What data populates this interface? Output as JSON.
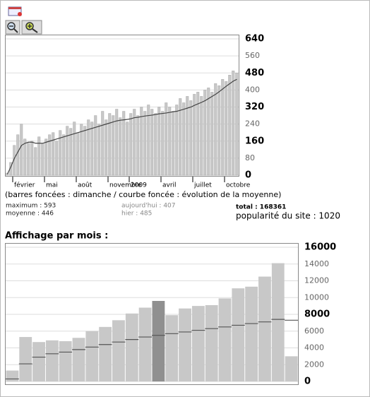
{
  "stats": {
    "legend_note": "(barres foncées : dimanche / courbe foncée : évolution de la moyenne)",
    "maximum": "maximum : 593",
    "moyenne": "moyenne : 446",
    "aujourdhui": "aujourd'hui : 407",
    "hier": "hier : 485",
    "total": "total : 168361",
    "popularite": "popularité du site : 1020",
    "monthly_title": "Affichage par mois :"
  },
  "chart_data": [
    {
      "type": "bar",
      "categories": [
        null,
        null,
        "février",
        null,
        null,
        null,
        null,
        null,
        null,
        null,
        null,
        "mai",
        null,
        null,
        null,
        null,
        null,
        null,
        null,
        null,
        "août",
        null,
        null,
        null,
        null,
        null,
        null,
        null,
        null,
        "novembre",
        null,
        null,
        null,
        null,
        null,
        "2009",
        null,
        null,
        null,
        null,
        null,
        null,
        null,
        null,
        "avril",
        null,
        null,
        null,
        null,
        null,
        null,
        null,
        null,
        "juillet",
        null,
        null,
        null,
        null,
        null,
        null,
        null,
        null,
        "octobre",
        null,
        null,
        null
      ],
      "series": [
        {
          "color": "#c8c8c8",
          "values": [
            10,
            60,
            140,
            190,
            240,
            170,
            150,
            160,
            130,
            180,
            150,
            170,
            190,
            200,
            160,
            210,
            190,
            230,
            220,
            250,
            200,
            240,
            230,
            260,
            250,
            280,
            240,
            300,
            260,
            290,
            280,
            310,
            270,
            300,
            250,
            290,
            310,
            280,
            320,
            300,
            330,
            310,
            290,
            320,
            300,
            340,
            320,
            300,
            330,
            360,
            340,
            370,
            350,
            380,
            390,
            370,
            400,
            410,
            390,
            430,
            420,
            450,
            440,
            470,
            490,
            480
          ]
        },
        {
          "type": "line",
          "color": "#444444",
          "values": [
            5,
            40,
            80,
            110,
            140,
            150,
            155,
            155,
            150,
            150,
            150,
            155,
            160,
            165,
            170,
            175,
            180,
            185,
            190,
            195,
            200,
            205,
            210,
            215,
            220,
            225,
            230,
            235,
            240,
            245,
            250,
            255,
            258,
            260,
            262,
            265,
            270,
            272,
            275,
            278,
            280,
            282,
            285,
            288,
            290,
            292,
            295,
            298,
            300,
            305,
            310,
            315,
            320,
            328,
            335,
            342,
            350,
            360,
            370,
            380,
            392,
            405,
            418,
            430,
            442,
            450
          ]
        }
      ],
      "ylim": [
        0,
        640
      ],
      "yticks": [
        0,
        80,
        160,
        240,
        320,
        400,
        480,
        560,
        640
      ],
      "grid": true
    },
    {
      "type": "bar",
      "series": [
        {
          "colors": [
            "#c8c8c8",
            "#c8c8c8",
            "#c8c8c8",
            "#c8c8c8",
            "#c8c8c8",
            "#c8c8c8",
            "#c8c8c8",
            "#c8c8c8",
            "#c8c8c8",
            "#c8c8c8",
            "#c8c8c8",
            "#909090",
            "#c8c8c8",
            "#c8c8c8",
            "#c8c8c8",
            "#c8c8c8",
            "#c8c8c8",
            "#c8c8c8",
            "#c8c8c8",
            "#c8c8c8",
            "#c8c8c8",
            "#c8c8c8"
          ],
          "values": [
            1300,
            5300,
            4700,
            4900,
            4800,
            5200,
            6000,
            6500,
            7300,
            8100,
            8800,
            9600,
            7900,
            8700,
            9000,
            9100,
            9900,
            11100,
            11300,
            12500,
            14100,
            3000
          ]
        },
        {
          "type": "step",
          "color": "#555555",
          "values": [
            300,
            2100,
            2900,
            3300,
            3500,
            3800,
            4100,
            4400,
            4700,
            5000,
            5300,
            5500,
            5700,
            5900,
            6100,
            6300,
            6500,
            6700,
            6900,
            7100,
            7400,
            7300
          ]
        }
      ],
      "ylim": [
        0,
        16000
      ],
      "yticks": [
        0,
        2000,
        4000,
        6000,
        8000,
        10000,
        12000,
        14000,
        16000
      ],
      "grid": true
    }
  ]
}
